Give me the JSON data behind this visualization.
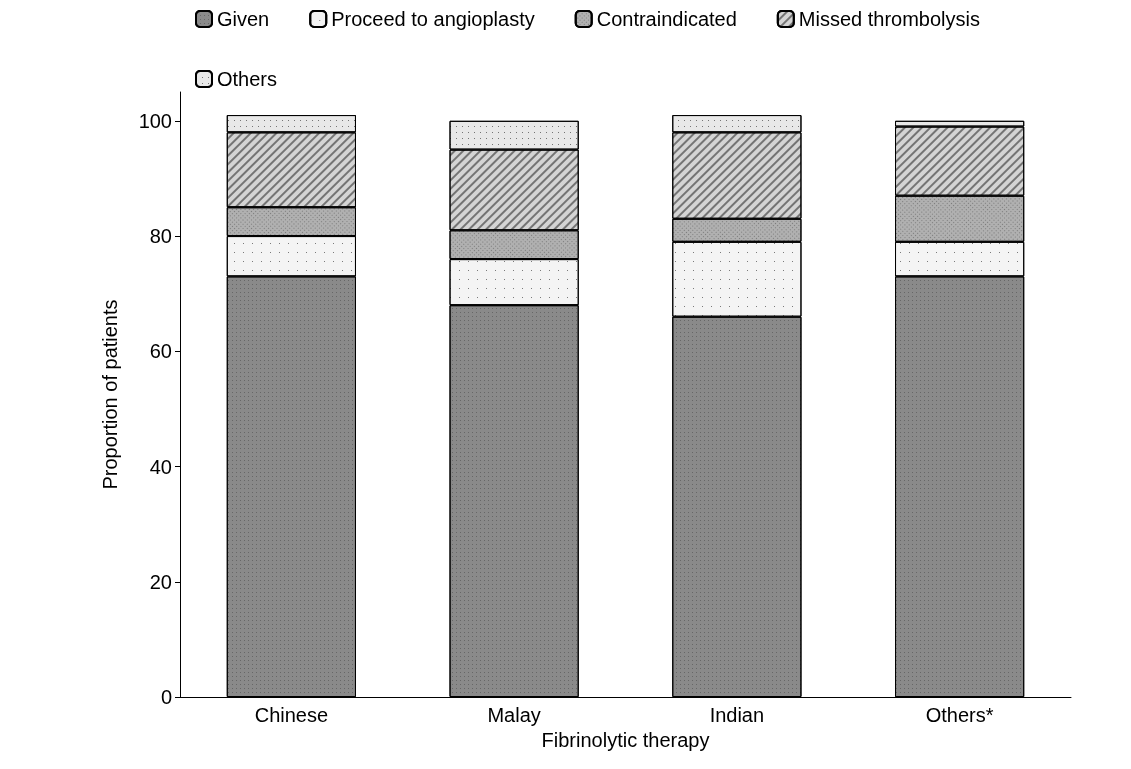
{
  "chart_data": {
    "type": "bar",
    "stacked": true,
    "xlabel": "Fibrinolytic therapy",
    "ylabel": "Proportion of patients",
    "categories": [
      "Chinese",
      "Malay",
      "Indian",
      "Others*"
    ],
    "series": [
      {
        "name": "Given",
        "color": "#8a8a8a",
        "values": [
          73,
          68,
          66,
          73
        ]
      },
      {
        "name": "Proceed to angioplasty",
        "color": "#f4f4f4",
        "values": [
          7,
          8,
          13,
          6
        ]
      },
      {
        "name": "Contraindicated",
        "color": "#b0b0b0",
        "values": [
          5,
          5,
          4,
          8
        ]
      },
      {
        "name": "Missed thrombolysis",
        "color": "#d4d4d4",
        "values": [
          13,
          14,
          15,
          12
        ]
      },
      {
        "name": "Others",
        "color": "#e8e8e8",
        "values": [
          3,
          5,
          3,
          1
        ]
      }
    ],
    "ylim": [
      0,
      105
    ],
    "yticks": [
      0,
      20,
      40,
      60,
      80,
      100
    ],
    "grid": false,
    "legend": "top left"
  }
}
